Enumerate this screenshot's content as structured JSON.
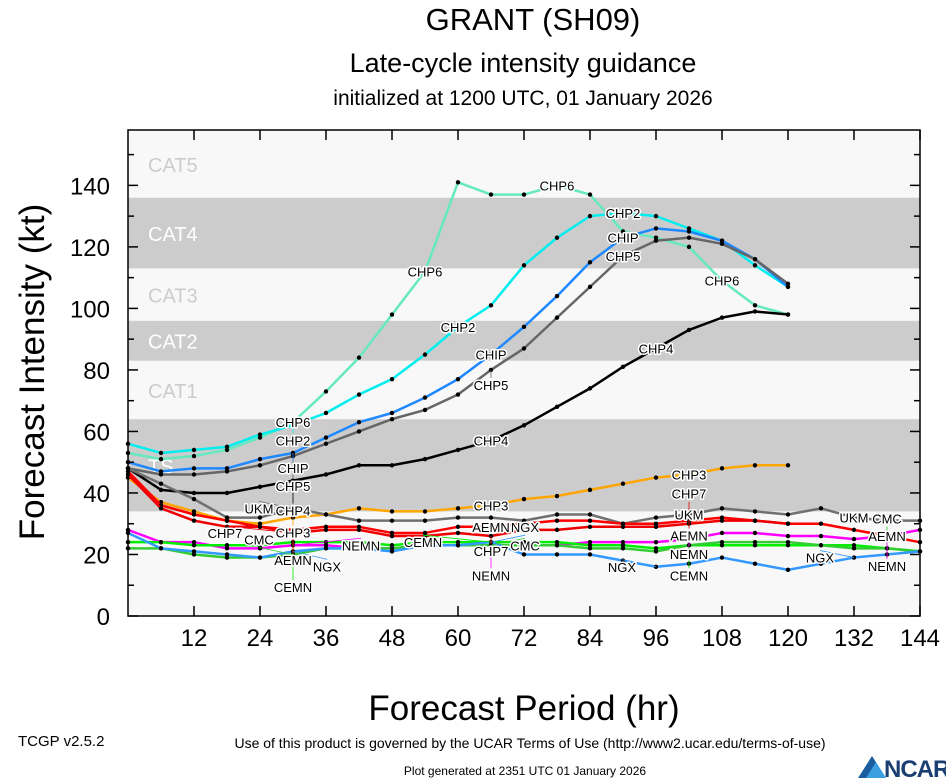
{
  "header": {
    "title": "GRANT (SH09)",
    "subtitle": "Late-cycle intensity guidance",
    "init": "initialized at 1200 UTC, 01 January 2026"
  },
  "footer": {
    "version": "TCGP v2.5.2",
    "terms": "Use of this product is governed by the UCAR Terms of Use (http://www2.ucar.edu/terms-of-use)",
    "generated": "Plot generated at 2351 UTC   01 January 2026",
    "logo": "NCAR"
  },
  "chart_data": {
    "type": "line",
    "xlabel": "Forecast Period (hr)",
    "ylabel": "Forecast Intensity (kt)",
    "xlim": [
      0,
      144
    ],
    "ylim": [
      0,
      158
    ],
    "xticks": [
      12,
      24,
      36,
      48,
      60,
      72,
      84,
      96,
      108,
      120,
      132,
      144
    ],
    "yticks": [
      0,
      20,
      40,
      60,
      80,
      100,
      120,
      140
    ],
    "x_step_hr": 6,
    "grid": false,
    "bands": [
      {
        "label": "TS",
        "min": 34,
        "max": 64,
        "color": "#cccccc",
        "label_color": "#ffffff"
      },
      {
        "label": "CAT1",
        "min": 64,
        "max": 83,
        "color": "#f8f8f8",
        "label_color": "#cccccc"
      },
      {
        "label": "CAT2",
        "min": 83,
        "max": 96,
        "color": "#cccccc",
        "label_color": "#ffffff"
      },
      {
        "label": "CAT3",
        "min": 96,
        "max": 113,
        "color": "#f8f8f8",
        "label_color": "#cccccc"
      },
      {
        "label": "CAT4",
        "min": 113,
        "max": 136,
        "color": "#cccccc",
        "label_color": "#ffffff"
      },
      {
        "label": "CAT5",
        "min": 136,
        "max": 158,
        "color": "#f8f8f8",
        "label_color": "#cccccc"
      }
    ],
    "background_color": "#f8f8f8",
    "series": [
      {
        "name": "CHP6",
        "color": "#66e8c0",
        "label_hours": [
          30,
          54,
          78,
          108
        ],
        "values": [
          53,
          51,
          52,
          54,
          58,
          63,
          73,
          84,
          98,
          112,
          141,
          137,
          137,
          140,
          137,
          125,
          123,
          120,
          109,
          101,
          98
        ]
      },
      {
        "name": "CHP2",
        "color": "#00eeee",
        "label_hours": [
          30,
          60,
          90
        ],
        "values": [
          56,
          53,
          54,
          55,
          59,
          62,
          66,
          72,
          77,
          85,
          94,
          101,
          114,
          123,
          130,
          131,
          130,
          126,
          122,
          114,
          107
        ]
      },
      {
        "name": "CHIP",
        "color": "#1e88ff",
        "label_hours": [
          30,
          66,
          90
        ],
        "values": [
          50,
          47,
          48,
          48,
          51,
          53,
          58,
          63,
          66,
          71,
          77,
          85,
          94,
          104,
          115,
          123,
          126,
          125,
          122,
          116,
          107
        ]
      },
      {
        "name": "CHP5",
        "color": "#666666",
        "label_hours": [
          30,
          66,
          90
        ],
        "values": [
          48,
          46,
          46,
          47,
          49,
          52,
          56,
          60,
          64,
          67,
          72,
          80,
          87,
          97,
          107,
          117,
          122,
          123,
          121,
          116,
          108
        ]
      },
      {
        "name": "CHP4",
        "color": "#000000",
        "label_hours": [
          30,
          66,
          96
        ],
        "values": [
          48,
          41,
          40,
          40,
          42,
          44,
          46,
          49,
          49,
          51,
          54,
          57,
          62,
          68,
          74,
          81,
          87,
          93,
          97,
          99,
          98
        ]
      },
      {
        "name": "CHP3",
        "color": "#ffa500",
        "label_hours": [
          30,
          66,
          102
        ],
        "values": [
          45,
          37,
          34,
          31,
          30,
          32,
          33,
          35,
          34,
          34,
          35,
          36,
          38,
          39,
          41,
          43,
          45,
          46,
          48,
          49,
          49
        ]
      },
      {
        "name": "UKM",
        "color": "#707070",
        "label_hours": [
          30,
          102,
          132
        ],
        "values": [
          48,
          43,
          38,
          32,
          32,
          35,
          33,
          31,
          31,
          31,
          32,
          32,
          31,
          33,
          33,
          30,
          32,
          33,
          35,
          34,
          33,
          35,
          32,
          31,
          31
        ]
      },
      {
        "name": "AEMN",
        "color": "#ff0000",
        "label_hours": [
          30,
          66,
          102,
          138
        ],
        "values": [
          47,
          36,
          33,
          31,
          29,
          28,
          29,
          29,
          27,
          27,
          29,
          29,
          30,
          31,
          31,
          30,
          30,
          31,
          32,
          31,
          30,
          30,
          28,
          26,
          24
        ]
      },
      {
        "name": "CHP7",
        "color": "#ee0000",
        "label_hours": [
          30,
          66,
          102
        ],
        "values": [
          46,
          35,
          31,
          29,
          29,
          27,
          28,
          28,
          26,
          26,
          27,
          26,
          28,
          28,
          29,
          29,
          29,
          30,
          31,
          31,
          30
        ]
      },
      {
        "name": "NEMN",
        "color": "#ff00ff",
        "label_hours": [
          30,
          66,
          102,
          138
        ],
        "values": [
          28,
          24,
          24,
          22,
          22,
          23,
          23,
          22,
          22,
          23,
          23,
          23,
          23,
          23,
          24,
          24,
          24,
          25,
          27,
          27,
          26,
          26,
          25,
          26,
          28
        ]
      },
      {
        "name": "CEMN",
        "color": "#00ee00",
        "label_hours": [
          30,
          66,
          102
        ],
        "values": [
          24,
          24,
          23,
          23,
          23,
          24,
          24,
          24,
          23,
          24,
          24,
          24,
          24,
          24,
          23,
          23,
          22,
          23,
          23,
          23,
          23,
          23,
          23,
          22,
          21
        ]
      },
      {
        "name": "CMC",
        "color": "#33cc33",
        "label_hours": [
          30,
          66,
          138
        ],
        "values": [
          22,
          22,
          20,
          19,
          19,
          20,
          22,
          22,
          22,
          23,
          23,
          23,
          23,
          23,
          22,
          22,
          21,
          23,
          24,
          24,
          24,
          23,
          22,
          22,
          21
        ]
      },
      {
        "name": "NGX",
        "color": "#3399ff",
        "label_hours": [
          30,
          66,
          96,
          132
        ],
        "values": [
          27,
          22,
          21,
          20,
          19,
          21,
          22,
          22,
          21,
          23,
          23,
          24,
          20,
          20,
          20,
          18,
          16,
          17,
          19,
          17,
          15,
          17,
          19,
          20,
          21
        ]
      }
    ]
  }
}
